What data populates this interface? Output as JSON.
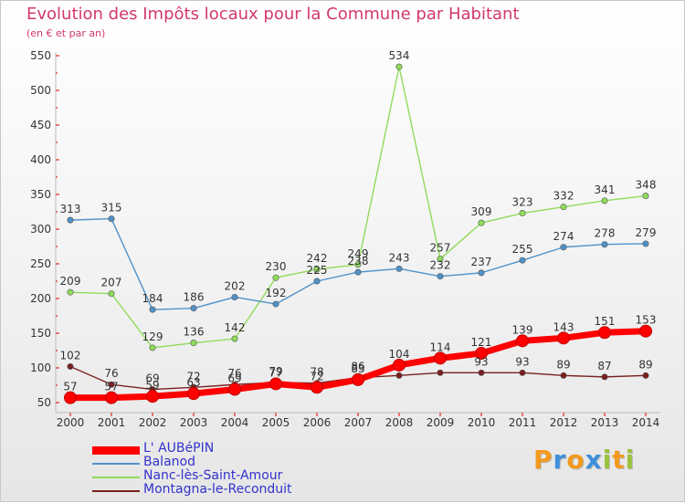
{
  "header": {
    "title": "Evolution des Impôts locaux pour la Commune par Habitant",
    "subtitle": "(en € et par an)"
  },
  "logo": {
    "text": "Proxiti",
    "letters": [
      {
        "ch": "P",
        "color": "#f39a1e"
      },
      {
        "ch": "r",
        "color": "#3f8fdb"
      },
      {
        "ch": "o",
        "color": "#f39a1e"
      },
      {
        "ch": "x",
        "color": "#3f8fdb"
      },
      {
        "ch": "i",
        "color": "#9ac23c"
      },
      {
        "ch": "t",
        "color": "#f39a1e"
      },
      {
        "ch": "i",
        "color": "#9ac23c"
      }
    ]
  },
  "chart_data": {
    "type": "line",
    "title": "Evolution des Impôts locaux pour la Commune par Habitant",
    "subtitle": "(en € et par an)",
    "x": [
      "2000",
      "2001",
      "2002",
      "2003",
      "2004",
      "2005",
      "2006",
      "2007",
      "2008",
      "2009",
      "2010",
      "2011",
      "2012",
      "2013",
      "2014"
    ],
    "ylim": [
      50,
      550
    ],
    "yticks": [
      50,
      100,
      150,
      200,
      250,
      300,
      350,
      400,
      450,
      500,
      550
    ],
    "grid": false,
    "legend_position": "bottom-left",
    "series": [
      {
        "name": "Montagna-le-Reconduit",
        "color": "#7a1f1f",
        "values": [
          102,
          76,
          69,
          72,
          76,
          79,
          78,
          86,
          89,
          93,
          93,
          93,
          89,
          87,
          89
        ],
        "labels": [
          "102",
          "76",
          "69",
          "72",
          "76",
          "79",
          "78",
          "86",
          "",
          "",
          "93",
          "93",
          "89",
          "87",
          "89"
        ]
      },
      {
        "name": "Nanc-lès-Saint-Amour",
        "color": "#8fdc5a",
        "values": [
          209,
          207,
          129,
          136,
          142,
          230,
          242,
          249,
          534,
          257,
          309,
          323,
          332,
          341,
          348
        ],
        "labels": [
          "209",
          "207",
          "129",
          "136",
          "142",
          "230",
          "242",
          "249",
          "534",
          "257",
          "309",
          "323",
          "332",
          "341",
          "348"
        ]
      },
      {
        "name": "Balanod",
        "color": "#4f92c9",
        "values": [
          313,
          315,
          184,
          186,
          202,
          192,
          225,
          238,
          243,
          232,
          237,
          255,
          274,
          278,
          279
        ],
        "labels": [
          "313",
          "315",
          "184",
          "186",
          "202",
          "192",
          "225",
          "238",
          "243",
          "232",
          "237",
          "255",
          "274",
          "278",
          "279"
        ]
      },
      {
        "name": "L' AUBéPIN",
        "color": "#ff0000",
        "values": [
          57,
          57,
          59,
          63,
          69,
          77,
          72,
          83,
          104,
          114,
          121,
          139,
          143,
          151,
          153
        ],
        "labels": [
          "57",
          "57",
          "59",
          "63",
          "69",
          "77",
          "72",
          "83",
          "104",
          "114",
          "121",
          "139",
          "143",
          "151",
          "153"
        ]
      }
    ]
  }
}
